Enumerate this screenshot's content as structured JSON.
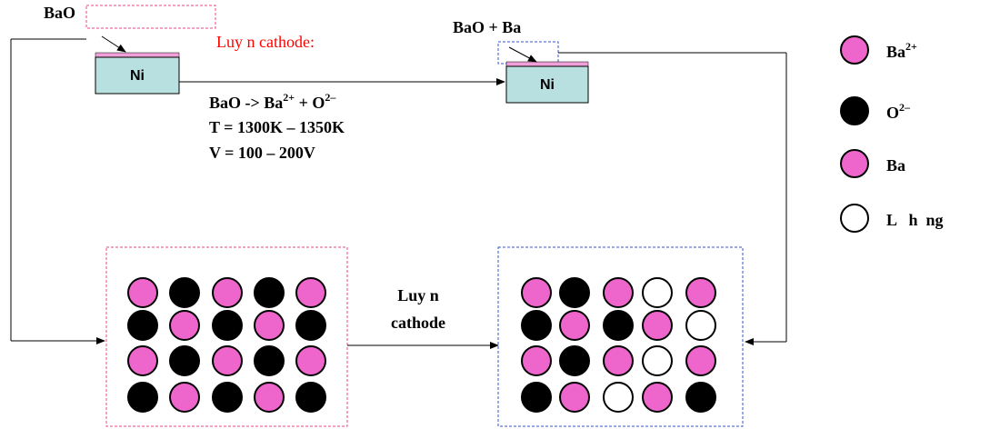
{
  "top_left": {
    "label": "BaO",
    "substrate": "Ni"
  },
  "process": {
    "title": "Luy n cathode:",
    "reaction": [
      {
        "text": "BaO -> Ba"
      },
      {
        "sup": "2+"
      },
      {
        "text": " + O"
      },
      {
        "sup": "2–"
      }
    ],
    "temperature": "T = 1300K – 1350K",
    "voltage": "V = 100 – 200V"
  },
  "top_right": {
    "label": "BaO + Ba",
    "substrate": "Ni"
  },
  "bottom_arrow": {
    "lines": [
      "Luy n",
      "cathode"
    ]
  },
  "legend": [
    {
      "base": "Ba",
      "sup": "2+"
    },
    {
      "base": "O",
      "sup": "2–"
    },
    {
      "base": "Ba"
    },
    {
      "base": "L   h  ng"
    }
  ]
}
